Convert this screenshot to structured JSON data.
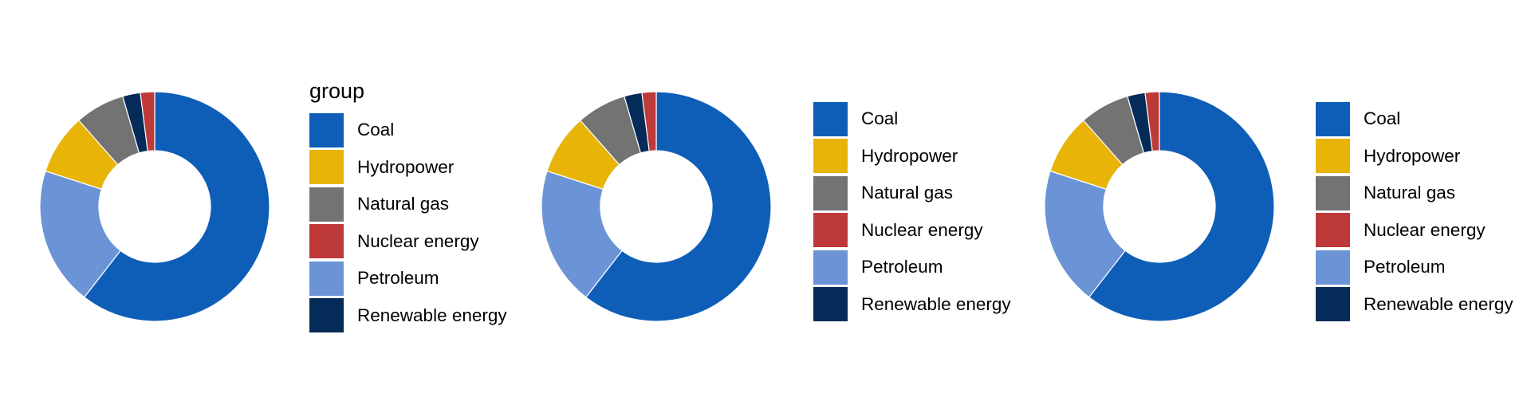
{
  "chart_data": [
    {
      "type": "pie",
      "variant": "donut",
      "legend": {
        "title": "group",
        "placement": "right"
      },
      "categories": [
        "Coal",
        "Hydropower",
        "Natural gas",
        "Nuclear energy",
        "Petroleum",
        "Renewable energy"
      ],
      "slice_order": [
        "Coal",
        "Petroleum",
        "Hydropower",
        "Natural gas",
        "Renewable energy",
        "Nuclear energy"
      ],
      "values": [
        60.5,
        8.5,
        7.0,
        2.0,
        19.5,
        2.5
      ],
      "colors": [
        "#0E5EB8",
        "#E8B407",
        "#737373",
        "#BE3A3A",
        "#6A94D5",
        "#052B58"
      ]
    },
    {
      "type": "pie",
      "variant": "donut",
      "legend": {
        "title": "",
        "placement": "right"
      },
      "categories": [
        "Coal",
        "Hydropower",
        "Natural gas",
        "Nuclear energy",
        "Petroleum",
        "Renewable energy"
      ],
      "slice_order": [
        "Coal",
        "Petroleum",
        "Hydropower",
        "Natural gas",
        "Renewable energy",
        "Nuclear energy"
      ],
      "values": [
        60.5,
        8.5,
        7.0,
        2.0,
        19.5,
        2.5
      ],
      "colors": [
        "#0E5EB8",
        "#E8B407",
        "#737373",
        "#BE3A3A",
        "#6A94D5",
        "#052B58"
      ]
    },
    {
      "type": "pie",
      "variant": "donut",
      "legend": {
        "title": "",
        "placement": "right"
      },
      "categories": [
        "Coal",
        "Hydropower",
        "Natural gas",
        "Nuclear energy",
        "Petroleum",
        "Renewable energy"
      ],
      "slice_order": [
        "Coal",
        "Petroleum",
        "Hydropower",
        "Natural gas",
        "Renewable energy",
        "Nuclear energy"
      ],
      "values": [
        60.5,
        8.5,
        7.0,
        2.0,
        19.5,
        2.5
      ],
      "colors": [
        "#0E5EB8",
        "#E8B407",
        "#737373",
        "#BE3A3A",
        "#6A94D5",
        "#052B58"
      ]
    }
  ]
}
